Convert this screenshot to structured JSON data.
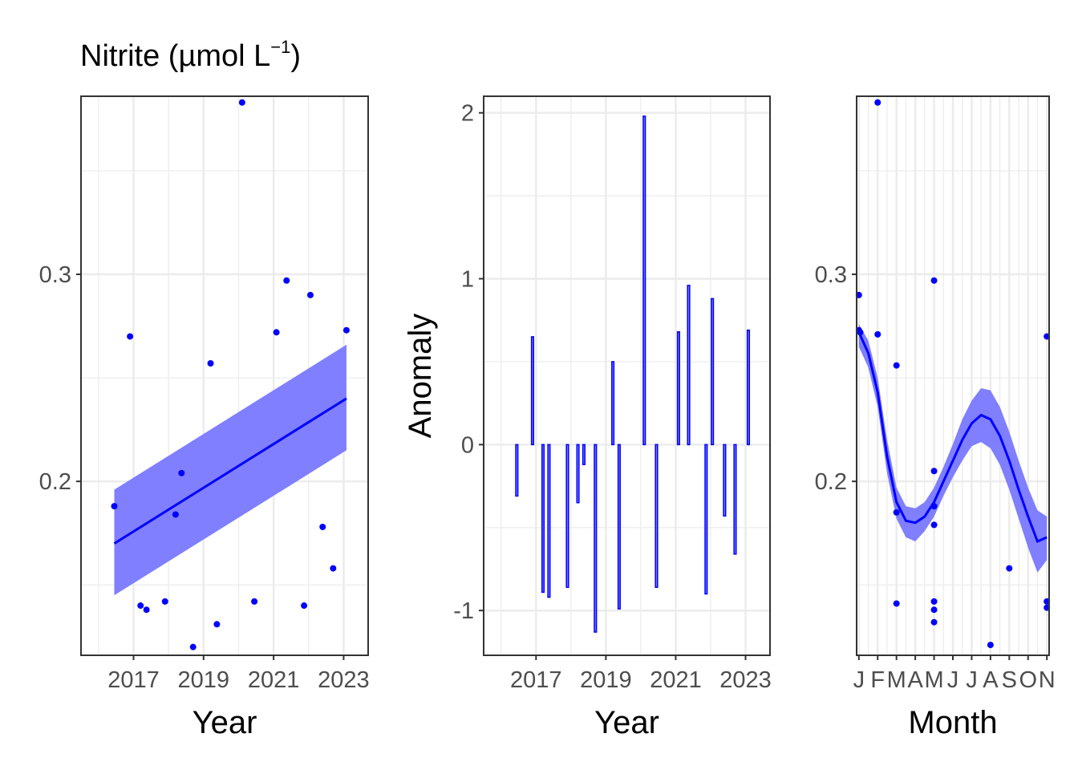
{
  "title": {
    "main": "Nitrite (µmol L",
    "sup": "−1",
    "close": ")"
  },
  "colors": {
    "accent": "#0000ff",
    "ribbon": "#7f7fff",
    "grid": "#ebebeb",
    "frame": "#333333"
  },
  "chart_data": [
    {
      "type": "scatter",
      "xlabel": "Year",
      "ylabel": "",
      "xlim": [
        2015.5,
        2023.7
      ],
      "ylim": [
        0.116,
        0.386
      ],
      "xticks": [
        "2017",
        "2019",
        "2021",
        "2023"
      ],
      "yticks": [
        "0.2",
        "0.3"
      ],
      "grid": true,
      "points": [
        [
          2016.45,
          0.188
        ],
        [
          2016.9,
          0.27
        ],
        [
          2017.2,
          0.14
        ],
        [
          2017.37,
          0.138
        ],
        [
          2017.9,
          0.142
        ],
        [
          2018.2,
          0.184
        ],
        [
          2018.37,
          0.204
        ],
        [
          2018.7,
          0.12
        ],
        [
          2019.2,
          0.257
        ],
        [
          2019.38,
          0.131
        ],
        [
          2020.1,
          0.383
        ],
        [
          2020.45,
          0.142
        ],
        [
          2021.08,
          0.272
        ],
        [
          2021.37,
          0.297
        ],
        [
          2021.87,
          0.14
        ],
        [
          2022.05,
          0.29
        ],
        [
          2022.4,
          0.178
        ],
        [
          2022.7,
          0.158
        ],
        [
          2023.08,
          0.273
        ]
      ],
      "trend": {
        "x": [
          2016.45,
          2023.08
        ],
        "y": [
          0.17,
          0.24
        ]
      },
      "ribbon": {
        "x": [
          2016.45,
          2023.08
        ],
        "upper": [
          0.196,
          0.266
        ],
        "lower": [
          0.145,
          0.215
        ]
      }
    },
    {
      "type": "bar",
      "xlabel": "Year",
      "ylabel": "Anomaly",
      "xlim": [
        2015.5,
        2023.7
      ],
      "ylim": [
        -1.27,
        2.1
      ],
      "xticks": [
        "2017",
        "2019",
        "2021",
        "2023"
      ],
      "yticks": [
        "-1",
        "0",
        "1",
        "2"
      ],
      "grid": true,
      "bars": [
        [
          2016.45,
          -0.31
        ],
        [
          2016.9,
          0.65
        ],
        [
          2017.2,
          -0.89
        ],
        [
          2017.37,
          -0.92
        ],
        [
          2017.9,
          -0.86
        ],
        [
          2018.2,
          -0.35
        ],
        [
          2018.37,
          -0.12
        ],
        [
          2018.7,
          -1.13
        ],
        [
          2019.2,
          0.5
        ],
        [
          2019.38,
          -0.99
        ],
        [
          2020.1,
          1.98
        ],
        [
          2020.45,
          -0.86
        ],
        [
          2021.08,
          0.68
        ],
        [
          2021.37,
          0.96
        ],
        [
          2021.87,
          -0.9
        ],
        [
          2022.05,
          0.88
        ],
        [
          2022.4,
          -0.43
        ],
        [
          2022.7,
          -0.66
        ],
        [
          2023.08,
          0.69
        ]
      ]
    },
    {
      "type": "scatter",
      "xlabel": "Month",
      "ylabel": "",
      "xlim": [
        0.88,
        11.12
      ],
      "ylim": [
        0.116,
        0.386
      ],
      "xticks": [
        "J",
        "F",
        "M",
        "A",
        "M",
        "J",
        "J",
        "A",
        "S",
        "O",
        "N"
      ],
      "yticks": [
        "0.2",
        "0.3"
      ],
      "grid": true,
      "points": [
        [
          1,
          0.29
        ],
        [
          1,
          0.273
        ],
        [
          1.07,
          0.272
        ],
        [
          2,
          0.383
        ],
        [
          2,
          0.271
        ],
        [
          3,
          0.256
        ],
        [
          3,
          0.185
        ],
        [
          3,
          0.141
        ],
        [
          5,
          0.297
        ],
        [
          5,
          0.205
        ],
        [
          5,
          0.188
        ],
        [
          5,
          0.179
        ],
        [
          5,
          0.142
        ],
        [
          5,
          0.138
        ],
        [
          5,
          0.132
        ],
        [
          8,
          0.121
        ],
        [
          9,
          0.158
        ],
        [
          11,
          0.27
        ],
        [
          11,
          0.142
        ],
        [
          11,
          0.139
        ]
      ],
      "smooth": {
        "x": [
          1,
          1.5,
          2,
          2.5,
          3,
          3.5,
          4,
          4.5,
          5,
          5.5,
          6,
          6.5,
          7,
          7.5,
          8,
          8.5,
          9,
          9.5,
          10,
          10.5,
          11
        ],
        "y": [
          0.272,
          0.262,
          0.243,
          0.212,
          0.19,
          0.181,
          0.18,
          0.183,
          0.19,
          0.2,
          0.21,
          0.22,
          0.228,
          0.232,
          0.23,
          0.222,
          0.21,
          0.196,
          0.183,
          0.171,
          0.173
        ],
        "upper": [
          0.276,
          0.268,
          0.25,
          0.22,
          0.197,
          0.188,
          0.187,
          0.19,
          0.197,
          0.207,
          0.218,
          0.23,
          0.239,
          0.245,
          0.244,
          0.236,
          0.224,
          0.21,
          0.197,
          0.186,
          0.183
        ],
        "lower": [
          0.265,
          0.255,
          0.236,
          0.204,
          0.182,
          0.173,
          0.171,
          0.176,
          0.183,
          0.193,
          0.202,
          0.21,
          0.217,
          0.219,
          0.216,
          0.208,
          0.196,
          0.182,
          0.168,
          0.156,
          0.162
        ]
      }
    }
  ]
}
